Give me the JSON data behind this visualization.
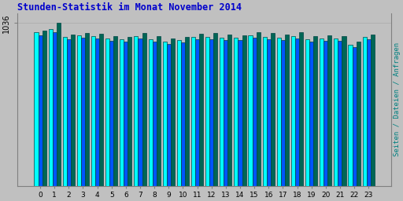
{
  "title": "Stunden-Statistik im Monat November 2014",
  "title_color": "#0000CC",
  "background_color": "#C0C0C0",
  "plot_bg_color": "#C0C0C0",
  "ylabel": "Seiten / Dateien / Anfragen",
  "ylabel_color": "#008080",
  "ytick_label": "1036",
  "ytick_val": 1036,
  "xlabel_labels": [
    "0",
    "1",
    "2",
    "3",
    "4",
    "5",
    "6",
    "7",
    "8",
    "9",
    "10",
    "11",
    "12",
    "13",
    "14",
    "15",
    "16",
    "17",
    "18",
    "19",
    "20",
    "21",
    "22",
    "23"
  ],
  "bar_width": 0.28,
  "colors": [
    "#00FFFF",
    "#0055FF",
    "#006655"
  ],
  "edge_color": "#004444",
  "seiten": [
    980,
    1000,
    950,
    960,
    955,
    940,
    935,
    955,
    935,
    920,
    930,
    950,
    950,
    945,
    945,
    960,
    950,
    945,
    955,
    935,
    940,
    940,
    900,
    950
  ],
  "dateien": [
    960,
    980,
    935,
    945,
    940,
    925,
    920,
    940,
    920,
    905,
    915,
    935,
    935,
    930,
    928,
    945,
    935,
    928,
    940,
    920,
    925,
    925,
    885,
    935
  ],
  "anfragen": [
    990,
    1036,
    965,
    975,
    970,
    955,
    950,
    975,
    955,
    940,
    950,
    970,
    975,
    965,
    960,
    980,
    975,
    965,
    980,
    955,
    960,
    955,
    920,
    965
  ]
}
